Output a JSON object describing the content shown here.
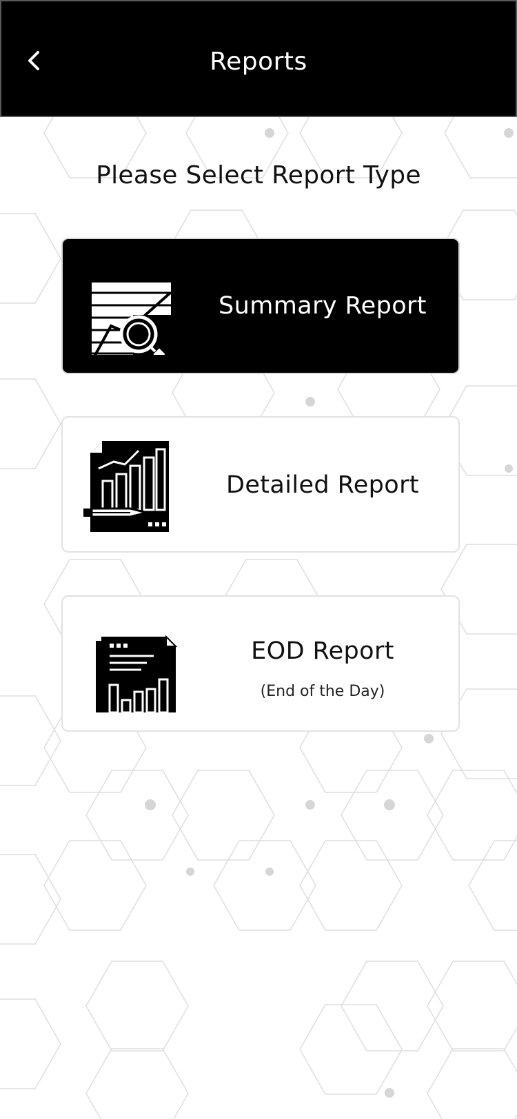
{
  "header": {
    "title": "Reports",
    "back_icon": "chevron-left-icon"
  },
  "main": {
    "heading": "Please Select Report Type",
    "cards": [
      {
        "label": "Summary Report",
        "icon": "summary-report-icon",
        "selected": true
      },
      {
        "label": "Detailed Report",
        "icon": "detailed-report-icon",
        "selected": false
      },
      {
        "label": "EOD Report",
        "subtitle": "(End of the Day)",
        "icon": "eod-report-icon",
        "selected": false
      }
    ]
  },
  "colors": {
    "header_background": "#000000",
    "selected_card_background": "#000000",
    "card_background": "#ffffff",
    "card_border": "#e2e2e2",
    "pattern_lines": "#dedede",
    "pattern_dots": "#d6d6d6"
  }
}
